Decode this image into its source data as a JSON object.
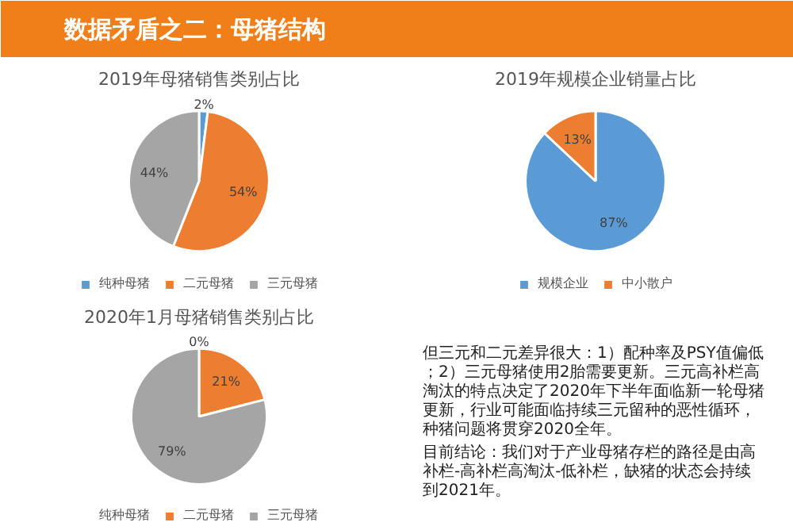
{
  "chart_data": [
    {
      "type": "other",
      "title": "数据矛盾之二：母猪结构"
    },
    {
      "type": "pie",
      "title": "2019年母猪销售类别占比",
      "categories": [
        "纯种母猪",
        "二元母猪",
        "三元母猪"
      ],
      "values": [
        2,
        54,
        44
      ],
      "colors": [
        "#5b9bd5",
        "#ed7d31",
        "#a5a5a5"
      ],
      "value_labels": [
        "2%",
        "54%",
        "44%"
      ],
      "legend": "bottom"
    },
    {
      "type": "pie",
      "title": "2019年规模企业销量占比",
      "categories": [
        "规模企业",
        "中小散户"
      ],
      "values": [
        87,
        13
      ],
      "colors": [
        "#5b9bd5",
        "#ed7d31"
      ],
      "value_labels": [
        "87%",
        "13%"
      ],
      "legend": "bottom"
    },
    {
      "type": "pie",
      "title": "2020年1月母猪销售类别占比",
      "categories": [
        "纯种母猪",
        "二元母猪",
        "三元母猪"
      ],
      "values": [
        0,
        21,
        79
      ],
      "colors": [
        "#5b9bd5",
        "#ed7d31",
        "#a5a5a5"
      ],
      "value_labels": [
        "0%",
        "21%",
        "79%"
      ],
      "legend": "bottom"
    },
    {
      "type": "other",
      "annotations": [
        "但三元和二元差异很大：1）配种率及PSY值偏低；2）三元母猪使用2胎需要更新。三元高补栏高淘汰的特点决定了2020年下半年面临新一轮母猪更新，行业可能面临持续三元留种的恶性循环，种猪问题将贯穿2020全年。",
        "目前结论：我们对于产业母猪存栏的路径是由高补栏-高补栏高淘汰-低补栏，缺猪的状态会持续到2021年。"
      ]
    }
  ]
}
